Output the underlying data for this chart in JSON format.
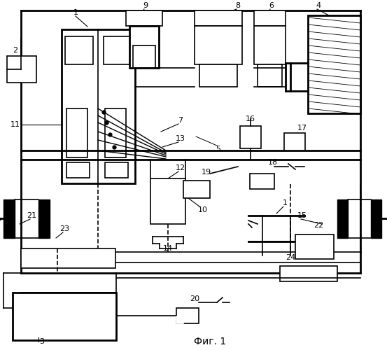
{
  "title": "Фиг. 1",
  "background_color": "#ffffff",
  "line_color": "#000000"
}
